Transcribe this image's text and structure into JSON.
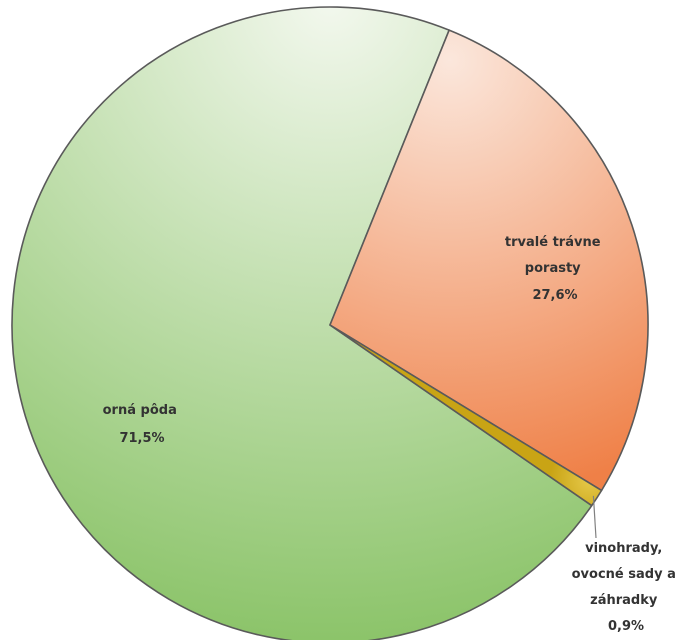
{
  "chart_data": {
    "type": "pie",
    "title": "",
    "slices": [
      {
        "label": "orná pôda",
        "value": 71.5,
        "value_label": "71,5%",
        "color": "#8cc46a",
        "color_light": "#f3f8ee"
      },
      {
        "label": "trvalé trávne porasty",
        "value": 27.6,
        "value_label": "27,6%",
        "color": "#ef8047",
        "color_light": "#fbe7dc"
      },
      {
        "label": "vinohrady, ovocné sady a záhradky",
        "value": 0.9,
        "value_label": "0,9%",
        "color": "#c9a415",
        "color_light": "#e6c94a"
      }
    ],
    "legend": "none",
    "data_labels": "inside; leader line for small slice"
  }
}
